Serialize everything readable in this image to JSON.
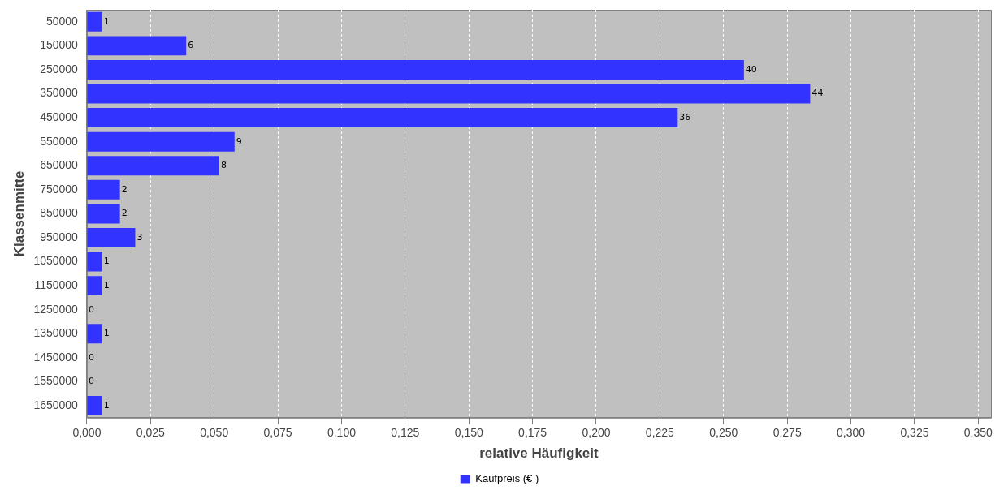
{
  "chart_data": {
    "type": "bar",
    "orientation": "horizontal",
    "xlabel": "relative Häufigkeit",
    "ylabel": "Klassenmitte",
    "categories": [
      "50000",
      "150000",
      "250000",
      "350000",
      "450000",
      "550000",
      "650000",
      "750000",
      "850000",
      "950000",
      "1050000",
      "1150000",
      "1250000",
      "1350000",
      "1450000",
      "1550000",
      "1650000"
    ],
    "series": [
      {
        "name": "Kaufpreis (€ )",
        "color": "#3333ff",
        "values": [
          0.006,
          0.039,
          0.258,
          0.284,
          0.232,
          0.058,
          0.052,
          0.013,
          0.013,
          0.019,
          0.006,
          0.006,
          0,
          0.006,
          0,
          0,
          0.006
        ]
      }
    ],
    "annotations": [
      {
        "text": "1",
        "x": 0.006,
        "y": "50000"
      },
      {
        "text": "6",
        "x": 0.039,
        "y": "150000"
      },
      {
        "text": "40",
        "x": 0.258,
        "y": "250000"
      },
      {
        "text": "44",
        "x": 0.284,
        "y": "350000"
      },
      {
        "text": "36",
        "x": 0.232,
        "y": "450000"
      },
      {
        "text": "9",
        "x": 0.058,
        "y": "550000"
      },
      {
        "text": "8",
        "x": 0.052,
        "y": "650000"
      },
      {
        "text": "2",
        "x": 0.013,
        "y": "750000"
      },
      {
        "text": "2",
        "x": 0.013,
        "y": "850000"
      },
      {
        "text": "3",
        "x": 0.019,
        "y": "950000"
      },
      {
        "text": "1",
        "x": 0.006,
        "y": "1050000"
      },
      {
        "text": "1",
        "x": 0.006,
        "y": "1150000"
      },
      {
        "text": "0",
        "x": 0,
        "y": "1250000"
      },
      {
        "text": "1",
        "x": 0.006,
        "y": "1350000"
      },
      {
        "text": "0",
        "x": 0,
        "y": "1450000"
      },
      {
        "text": "0",
        "x": 0,
        "y": "1550000"
      },
      {
        "text": "1",
        "x": 0.006,
        "y": "1650000"
      }
    ],
    "xlim": [
      0,
      0.355
    ],
    "xticks": [
      {
        "value": 0,
        "label": "0,000"
      },
      {
        "value": 0.025,
        "label": "0,025"
      },
      {
        "value": 0.05,
        "label": "0,050"
      },
      {
        "value": 0.075,
        "label": "0,075"
      },
      {
        "value": 0.1,
        "label": "0,100"
      },
      {
        "value": 0.125,
        "label": "0,125"
      },
      {
        "value": 0.15,
        "label": "0,150"
      },
      {
        "value": 0.175,
        "label": "0,175"
      },
      {
        "value": 0.2,
        "label": "0,200"
      },
      {
        "value": 0.225,
        "label": "0,225"
      },
      {
        "value": 0.25,
        "label": "0,250"
      },
      {
        "value": 0.275,
        "label": "0,275"
      },
      {
        "value": 0.3,
        "label": "0,300"
      },
      {
        "value": 0.325,
        "label": "0,325"
      },
      {
        "value": 0.35,
        "label": "0,350"
      }
    ],
    "grid": "x",
    "legend": "bottom"
  }
}
